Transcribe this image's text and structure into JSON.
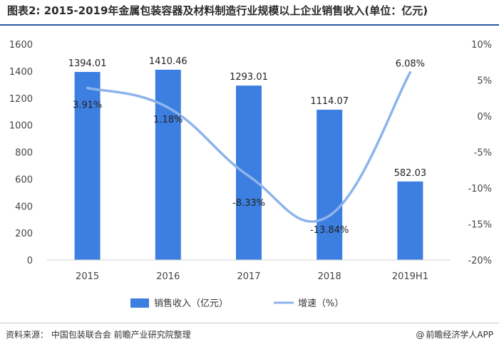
{
  "title": "图表2: 2015-2019年金属包装容器及材料制造行业规模以上企业销售收入(单位：亿元)",
  "footer": {
    "source": "资料来源： 中国包装联合会 前瞻产业研究院整理",
    "credit_symbol": "@",
    "credit": "前瞻经济学人APP"
  },
  "colors": {
    "bar": "#3d7fe0",
    "line": "#8db4ea",
    "title_rule": "#2c5aa0"
  },
  "chart_data": {
    "type": "bar",
    "categories": [
      "2015",
      "2016",
      "2017",
      "2018",
      "2019H1"
    ],
    "series": [
      {
        "name": "销售收入（亿元）",
        "type": "bar",
        "axis": "left",
        "values": [
          1394.01,
          1410.46,
          1293.01,
          1114.07,
          582.03
        ],
        "labels": [
          "1394.01",
          "1410.46",
          "1293.01",
          "1114.07",
          "582.03"
        ]
      },
      {
        "name": "增速（%）",
        "type": "line",
        "smooth": true,
        "axis": "right",
        "values": [
          3.91,
          1.18,
          -8.33,
          -13.84,
          6.08
        ],
        "labels": [
          "3.91%",
          "1.18%",
          "-8.33%",
          "-13.84%",
          "6.08%"
        ]
      }
    ],
    "left_axis": {
      "ylim": [
        0,
        1600
      ],
      "ticks": [
        "0",
        "200",
        "400",
        "600",
        "800",
        "1000",
        "1200",
        "1400",
        "1600"
      ]
    },
    "right_axis": {
      "ylim": [
        -20,
        10
      ],
      "ticks": [
        "-20%",
        "-15%",
        "-10%",
        "-5%",
        "0%",
        "5%",
        "10%"
      ]
    },
    "legend": {
      "position": "bottom"
    },
    "grid": false
  }
}
